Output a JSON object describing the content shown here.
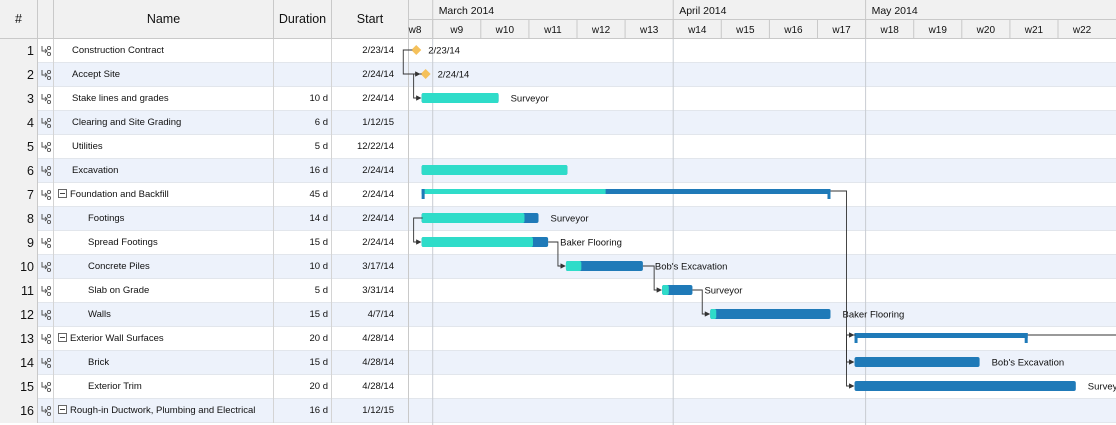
{
  "columns": {
    "num": "#",
    "name": "Name",
    "duration": "Duration",
    "start": "Start"
  },
  "months": [
    {
      "label": "March 2014",
      "from": 1,
      "to": 5
    },
    {
      "label": "April 2014",
      "from": 6,
      "to": 9
    },
    {
      "label": "May 2014",
      "from": 10,
      "to": 14
    }
  ],
  "weeks": [
    "w8",
    "w9",
    "w10",
    "w11",
    "w12",
    "w13",
    "w14",
    "w15",
    "w16",
    "w17",
    "w18",
    "w19",
    "w20",
    "w21",
    "w22"
  ],
  "colors": {
    "accent": "#2fdcc9",
    "progress": "#1f7ab8",
    "milestone": "#f5c15b"
  },
  "tasks": [
    {
      "id": 1,
      "name": "Construction Contract",
      "duration": "",
      "start": "2/23/14",
      "indent": 0,
      "collapsible": false
    },
    {
      "id": 2,
      "name": "Accept Site",
      "duration": "",
      "start": "2/24/14",
      "indent": 0,
      "collapsible": false
    },
    {
      "id": 3,
      "name": "Stake lines and grades",
      "duration": "10 d",
      "start": "2/24/14",
      "indent": 0,
      "collapsible": false
    },
    {
      "id": 4,
      "name": "Clearing and Site Grading",
      "duration": "6 d",
      "start": "1/12/15",
      "indent": 0,
      "collapsible": false
    },
    {
      "id": 5,
      "name": "Utilities",
      "duration": "5 d",
      "start": "12/22/14",
      "indent": 0,
      "collapsible": false
    },
    {
      "id": 6,
      "name": "Excavation",
      "duration": "16 d",
      "start": "2/24/14",
      "indent": 0,
      "collapsible": false
    },
    {
      "id": 7,
      "name": "Foundation and Backfill",
      "duration": "45 d",
      "start": "2/24/14",
      "indent": 0,
      "collapsible": true
    },
    {
      "id": 8,
      "name": "Footings",
      "duration": "14 d",
      "start": "2/24/14",
      "indent": 1,
      "collapsible": false
    },
    {
      "id": 9,
      "name": "Spread Footings",
      "duration": "15 d",
      "start": "2/24/14",
      "indent": 1,
      "collapsible": false
    },
    {
      "id": 10,
      "name": "Concrete Piles",
      "duration": "10 d",
      "start": "3/17/14",
      "indent": 1,
      "collapsible": false
    },
    {
      "id": 11,
      "name": "Slab on Grade",
      "duration": "5 d",
      "start": "3/31/14",
      "indent": 1,
      "collapsible": false
    },
    {
      "id": 12,
      "name": "Walls",
      "duration": "15 d",
      "start": "4/7/14",
      "indent": 1,
      "collapsible": false
    },
    {
      "id": 13,
      "name": "Exterior Wall Surfaces",
      "duration": "20 d",
      "start": "4/28/14",
      "indent": 0,
      "collapsible": true
    },
    {
      "id": 14,
      "name": "Brick",
      "duration": "15 d",
      "start": "4/28/14",
      "indent": 1,
      "collapsible": false
    },
    {
      "id": 15,
      "name": "Exterior Trim",
      "duration": "20 d",
      "start": "4/28/14",
      "indent": 1,
      "collapsible": false
    },
    {
      "id": 16,
      "name": "Rough-in Ductwork, Plumbing and Electrical",
      "duration": "16 d",
      "start": "1/12/15",
      "indent": 0,
      "collapsible": true
    }
  ],
  "bars": [
    {
      "row": 1,
      "kind": "milestone",
      "start": 0.575,
      "label": "2/23/14"
    },
    {
      "row": 2,
      "kind": "milestone",
      "start": 0.77,
      "label": "2/24/14"
    },
    {
      "row": 3,
      "kind": "task",
      "start": 0.77,
      "end": 2.37,
      "progress": 1.0,
      "label": "Surveyor"
    },
    {
      "row": 6,
      "kind": "task",
      "start": 0.77,
      "end": 3.8,
      "progress": 1.0,
      "label": ""
    },
    {
      "row": 7,
      "kind": "summary",
      "start": 0.77,
      "end": 9.27,
      "progress": 0.45,
      "label": ""
    },
    {
      "row": 8,
      "kind": "task",
      "start": 0.77,
      "end": 3.2,
      "progress": 0.88,
      "label": "Surveyor"
    },
    {
      "row": 9,
      "kind": "task",
      "start": 0.77,
      "end": 3.4,
      "progress": 0.88,
      "label": "Baker Flooring"
    },
    {
      "row": 10,
      "kind": "task",
      "start": 3.77,
      "end": 5.37,
      "progress": 0.2,
      "label": "Bob's Excavation"
    },
    {
      "row": 11,
      "kind": "task",
      "start": 5.77,
      "end": 6.4,
      "progress": 0.22,
      "label": "Surveyor"
    },
    {
      "row": 12,
      "kind": "task",
      "start": 6.77,
      "end": 9.27,
      "progress": 0.05,
      "label": "Baker Flooring"
    },
    {
      "row": 13,
      "kind": "summary",
      "start": 9.77,
      "end": 13.37,
      "progress": 0.0,
      "label": ""
    },
    {
      "row": 14,
      "kind": "task",
      "start": 9.77,
      "end": 12.37,
      "progress": 0.0,
      "label": "Bob's Excavation"
    },
    {
      "row": 15,
      "kind": "task",
      "start": 9.77,
      "end": 14.37,
      "progress": 0.0,
      "label": "Surveyor"
    }
  ],
  "links": [
    {
      "from": 1,
      "to": 2
    },
    {
      "from": 2,
      "to": 3
    },
    {
      "from": 8,
      "to": 9
    },
    {
      "from": 9,
      "to": 10
    },
    {
      "from": 10,
      "to": 11
    },
    {
      "from": 11,
      "to": 12
    },
    {
      "from": 7,
      "to": 13
    },
    {
      "from": 13,
      "to": 14
    },
    {
      "from": 13,
      "to": 15
    }
  ]
}
